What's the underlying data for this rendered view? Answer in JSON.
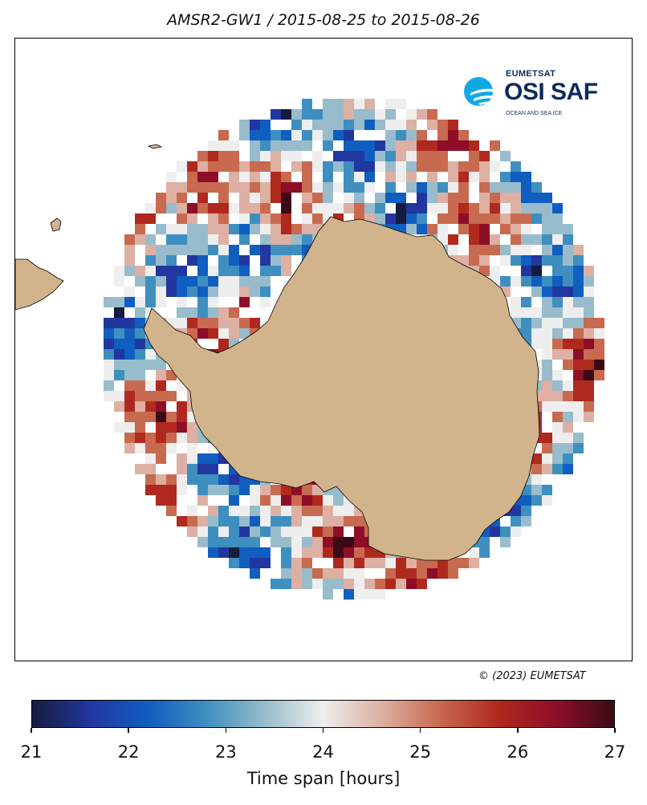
{
  "title": "AMSR2-GW1 / 2015-08-25 to 2015-08-26",
  "logo": {
    "org": "EUMETSAT",
    "name": "OSI SAF",
    "subtitle": "OCEAN AND SEA ICE",
    "icon": "osisaf-swirl-icon",
    "colors": {
      "navy": "#0e2a5c",
      "cyan": "#12a8e6"
    }
  },
  "copyright": "© (2023) EUMETSAT",
  "colorbar": {
    "label": "Time span [hours]",
    "min": 21,
    "max": 27,
    "ticks": [
      "21",
      "22",
      "23",
      "24",
      "25",
      "26",
      "27"
    ],
    "stops": [
      "#161c3e",
      "#2236a0",
      "#0f5ec0",
      "#3e8fc0",
      "#98bccb",
      "#eeeeee",
      "#ddb0a3",
      "#c86a4f",
      "#b0291e",
      "#8e0e28",
      "#3c0a16"
    ]
  },
  "map": {
    "land_color": "#d2b48c",
    "continent": "Antarctica",
    "projection": "south polar stereographic"
  }
}
